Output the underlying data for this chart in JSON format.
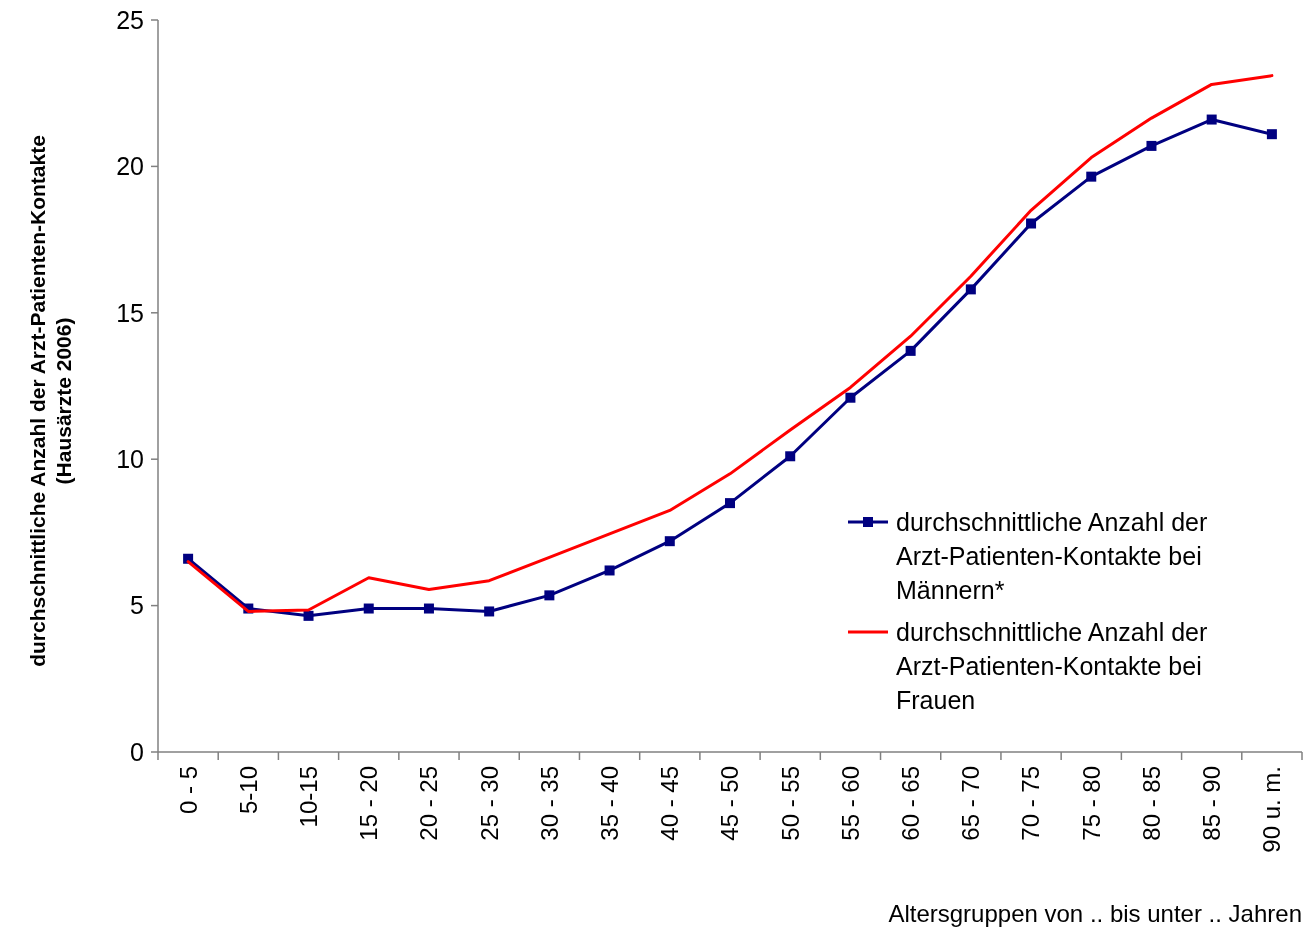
{
  "chart_data": {
    "type": "line",
    "ylabel": "durchschnittliche Anzahl der Arzt-Patienten-Kontakte\n(Hausärzte 2006)",
    "xlabel": "Altersgruppen von .. bis unter .. Jahren",
    "categories": [
      "0 - 5",
      "5-10",
      "10-15",
      "15 - 20",
      "20 - 25",
      "25 - 30",
      "30 - 35",
      "35 - 40",
      "40 - 45",
      "45 - 50",
      "50 - 55",
      "55 - 60",
      "60 - 65",
      "65 - 70",
      "70 - 75",
      "75 - 80",
      "80 - 85",
      "85 - 90",
      "90 u. m."
    ],
    "series": [
      {
        "name": "durchschnittliche Anzahl der Arzt-Patienten-Kontakte bei Männern*",
        "color": "#000080",
        "marker": "square",
        "values": [
          6.6,
          4.9,
          4.65,
          4.9,
          4.9,
          4.8,
          5.35,
          6.2,
          7.2,
          8.5,
          10.1,
          12.1,
          13.7,
          15.8,
          18.05,
          19.65,
          20.7,
          21.6,
          21.1
        ]
      },
      {
        "name": "durchschnittliche Anzahl der Arzt-Patienten-Kontakte bei Frauen",
        "color": "#ff0000",
        "marker": "none",
        "values": [
          6.5,
          4.8,
          4.85,
          5.95,
          5.55,
          5.85,
          6.65,
          7.45,
          8.25,
          9.5,
          11,
          12.45,
          14.2,
          16.25,
          18.5,
          20.3,
          21.65,
          22.8,
          23.1
        ]
      }
    ],
    "ylim": [
      0,
      25
    ],
    "yticks": [
      0,
      5,
      10,
      15,
      20,
      25
    ],
    "grid": false,
    "legend": "right"
  }
}
